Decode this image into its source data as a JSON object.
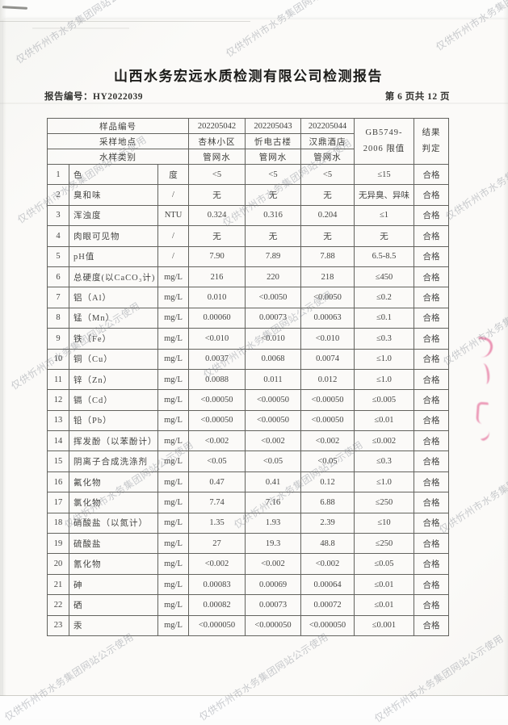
{
  "watermark": {
    "text": "仅供忻州市水务集团网站公示使用"
  },
  "header": {
    "title": "山西水务宏远水质检测有限公司检测报告",
    "report_no": "报告编号：HY2022039",
    "page_info": "第 6 页共 12 页"
  },
  "table": {
    "head": {
      "sample_id_label": "样品编号",
      "sample_location_label": "采样地点",
      "water_type_label": "水样类别",
      "sample_ids": [
        "202205042",
        "202205043",
        "202205044"
      ],
      "locations": [
        "杏林小区",
        "忻电古楼",
        "汉鼎酒店"
      ],
      "water_types": [
        "管网水",
        "管网水",
        "管网水"
      ],
      "limit_line1": "GB5749-",
      "limit_line2": "2006 限值",
      "result_line1": "结果",
      "result_line2": "判定"
    },
    "rows": [
      {
        "no": "1",
        "item": "色",
        "unit": "度",
        "v1": "<5",
        "v2": "<5",
        "v3": "<5",
        "limit": "≤15",
        "result": "合格"
      },
      {
        "no": "2",
        "item": "臭和味",
        "unit": "/",
        "v1": "无",
        "v2": "无",
        "v3": "无",
        "limit": "无异臭、异味",
        "result": "合格"
      },
      {
        "no": "3",
        "item": "浑浊度",
        "unit": "NTU",
        "v1": "0.324",
        "v2": "0.316",
        "v3": "0.204",
        "limit": "≤1",
        "result": "合格"
      },
      {
        "no": "4",
        "item": "肉眼可见物",
        "unit": "/",
        "v1": "无",
        "v2": "无",
        "v3": "无",
        "limit": "无",
        "result": "合格"
      },
      {
        "no": "5",
        "item": "pH值",
        "unit": "/",
        "v1": "7.90",
        "v2": "7.89",
        "v3": "7.88",
        "limit": "6.5-8.5",
        "result": "合格"
      },
      {
        "no": "6",
        "item": "总硬度(以CaCO₃计)",
        "unit": "mg/L",
        "v1": "216",
        "v2": "220",
        "v3": "218",
        "limit": "≤450",
        "result": "合格"
      },
      {
        "no": "7",
        "item": "铝（Al）",
        "unit": "mg/L",
        "v1": "0.010",
        "v2": "<0.0050",
        "v3": "<0.0050",
        "limit": "≤0.2",
        "result": "合格"
      },
      {
        "no": "8",
        "item": "锰（Mn）",
        "unit": "mg/L",
        "v1": "0.00060",
        "v2": "0.00073",
        "v3": "0.00063",
        "limit": "≤0.1",
        "result": "合格"
      },
      {
        "no": "9",
        "item": "铁（Fe）",
        "unit": "mg/L",
        "v1": "<0.010",
        "v2": "<0.010",
        "v3": "<0.010",
        "limit": "≤0.3",
        "result": "合格"
      },
      {
        "no": "10",
        "item": "铜（Cu）",
        "unit": "mg/L",
        "v1": "0.0037",
        "v2": "0.0068",
        "v3": "0.0074",
        "limit": "≤1.0",
        "result": "合格"
      },
      {
        "no": "11",
        "item": "锌（Zn）",
        "unit": "mg/L",
        "v1": "0.0088",
        "v2": "0.011",
        "v3": "0.012",
        "limit": "≤1.0",
        "result": "合格"
      },
      {
        "no": "12",
        "item": "镉（Cd）",
        "unit": "mg/L",
        "v1": "<0.00050",
        "v2": "<0.00050",
        "v3": "<0.00050",
        "limit": "≤0.005",
        "result": "合格"
      },
      {
        "no": "13",
        "item": "铅（Pb）",
        "unit": "mg/L",
        "v1": "<0.00050",
        "v2": "<0.00050",
        "v3": "<0.00050",
        "limit": "≤0.01",
        "result": "合格"
      },
      {
        "no": "14",
        "item": "挥发酚（以苯酚计）",
        "unit": "mg/L",
        "v1": "<0.002",
        "v2": "<0.002",
        "v3": "<0.002",
        "limit": "≤0.002",
        "result": "合格"
      },
      {
        "no": "15",
        "item": "阴离子合成洗涤剂",
        "unit": "mg/L",
        "v1": "<0.05",
        "v2": "<0.05",
        "v3": "<0.05",
        "limit": "≤0.3",
        "result": "合格"
      },
      {
        "no": "16",
        "item": "氟化物",
        "unit": "mg/L",
        "v1": "0.47",
        "v2": "0.41",
        "v3": "0.12",
        "limit": "≤1.0",
        "result": "合格"
      },
      {
        "no": "17",
        "item": "氯化物",
        "unit": "mg/L",
        "v1": "7.74",
        "v2": "7.16",
        "v3": "6.88",
        "limit": "≤250",
        "result": "合格"
      },
      {
        "no": "18",
        "item": "硝酸盐（以氮计）",
        "unit": "mg/L",
        "v1": "1.35",
        "v2": "1.93",
        "v3": "2.39",
        "limit": "≤10",
        "result": "合格"
      },
      {
        "no": "19",
        "item": "硫酸盐",
        "unit": "mg/L",
        "v1": "27",
        "v2": "19.3",
        "v3": "48.8",
        "limit": "≤250",
        "result": "合格"
      },
      {
        "no": "20",
        "item": "氰化物",
        "unit": "mg/L",
        "v1": "<0.002",
        "v2": "<0.002",
        "v3": "<0.002",
        "limit": "≤0.05",
        "result": "合格"
      },
      {
        "no": "21",
        "item": "砷",
        "unit": "mg/L",
        "v1": "0.00083",
        "v2": "0.00069",
        "v3": "0.00064",
        "limit": "≤0.01",
        "result": "合格"
      },
      {
        "no": "22",
        "item": "硒",
        "unit": "mg/L",
        "v1": "0.00082",
        "v2": "0.00073",
        "v3": "0.00072",
        "limit": "≤0.01",
        "result": "合格"
      },
      {
        "no": "23",
        "item": "汞",
        "unit": "mg/L",
        "v1": "<0.000050",
        "v2": "<0.000050",
        "v3": "<0.000050",
        "limit": "≤0.001",
        "result": "合格"
      }
    ]
  }
}
